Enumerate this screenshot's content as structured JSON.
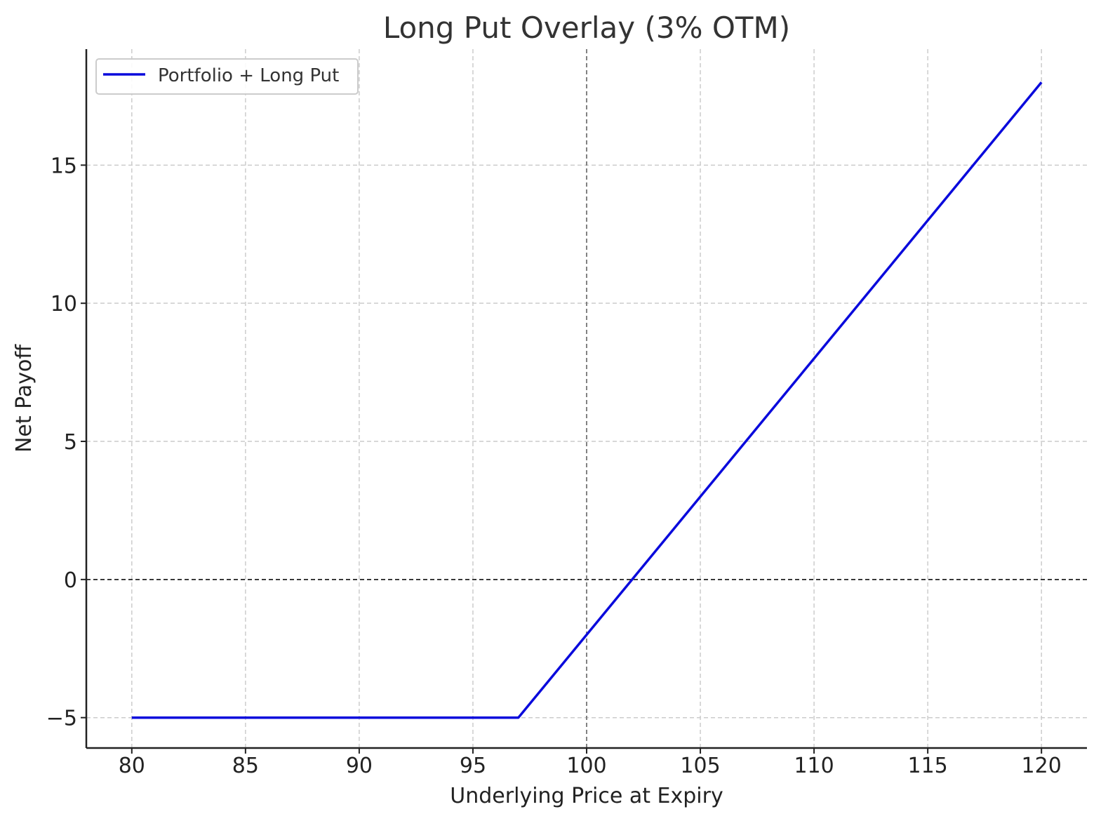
{
  "chart_data": {
    "type": "line",
    "title": "Long Put Overlay (3% OTM)",
    "xlabel": "Underlying Price at Expiry",
    "ylabel": "Net Payoff",
    "xlim": [
      78,
      122
    ],
    "ylim": [
      -6.1,
      19.2
    ],
    "xticks": [
      80,
      85,
      90,
      95,
      100,
      105,
      110,
      115,
      120
    ],
    "yticks": [
      -5,
      0,
      5,
      10,
      15
    ],
    "xtick_labels": [
      "80",
      "85",
      "90",
      "95",
      "100",
      "105",
      "110",
      "115",
      "120"
    ],
    "ytick_labels": [
      "−5",
      "0",
      "5",
      "10",
      "15"
    ],
    "grid": true,
    "legend_placement": "top-left",
    "reference_lines": [
      {
        "orientation": "horizontal",
        "value": 0,
        "color": "#222222",
        "style": "dashed"
      },
      {
        "orientation": "vertical",
        "value": 100,
        "color": "#777777",
        "style": "dashed"
      }
    ],
    "series": [
      {
        "name": "Portfolio + Long Put",
        "color": "#0a0adc",
        "x": [
          80,
          97,
          120
        ],
        "y": [
          -5,
          -5,
          18
        ]
      }
    ]
  }
}
